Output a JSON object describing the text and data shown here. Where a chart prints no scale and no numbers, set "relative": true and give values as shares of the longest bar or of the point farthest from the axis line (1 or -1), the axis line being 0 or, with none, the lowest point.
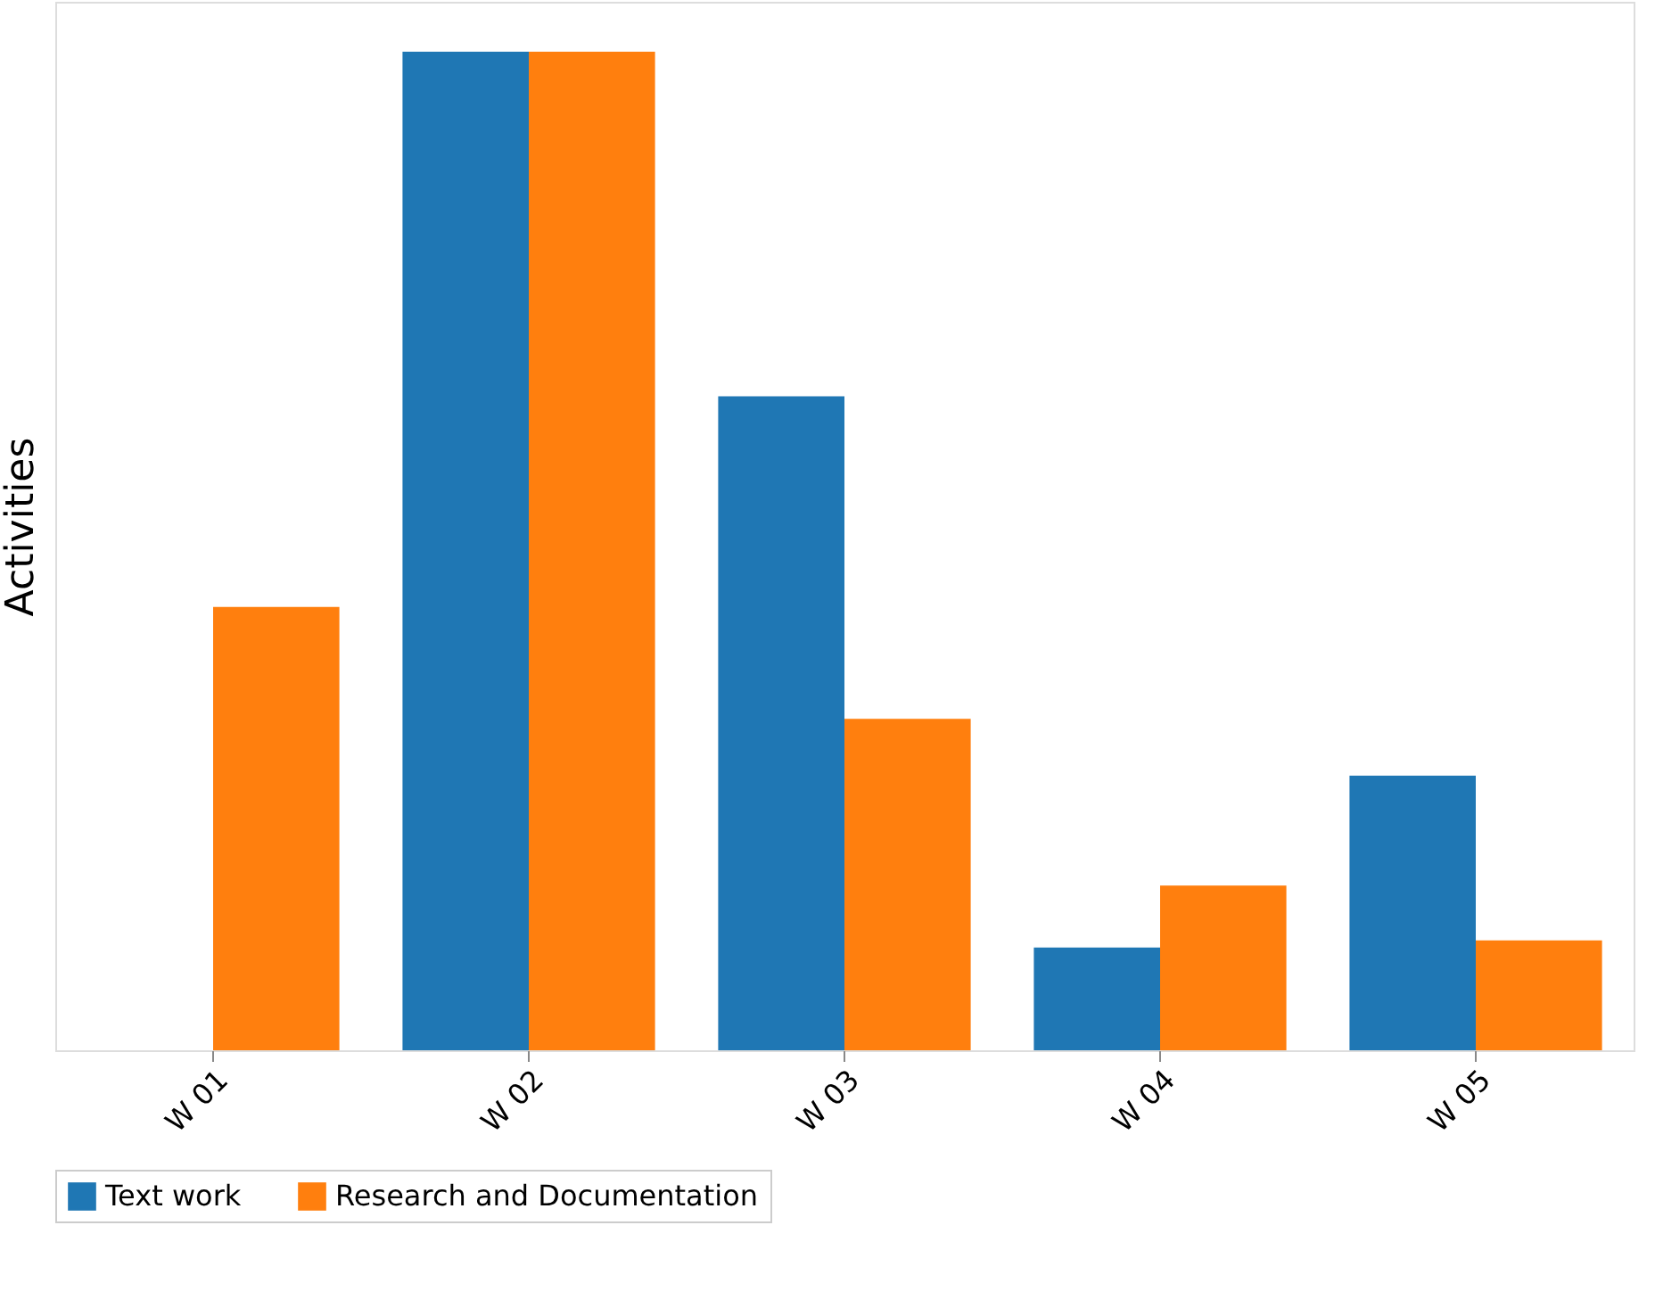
{
  "chart_data": {
    "type": "bar",
    "relative": true,
    "ylabel": "Activities",
    "categories": [
      "W 01",
      "W 02",
      "W 03",
      "W 04",
      "W 05"
    ],
    "series": [
      {
        "name": "Text work",
        "color": "#1f77b4",
        "values": [
          0,
          1,
          0.655,
          0.103,
          0.275
        ]
      },
      {
        "name": "Research and Documentation",
        "color": "#ff7f0e",
        "values": [
          0.444,
          1,
          0.332,
          0.165,
          0.11
        ]
      }
    ],
    "legend": "bottom",
    "grid": false
  }
}
